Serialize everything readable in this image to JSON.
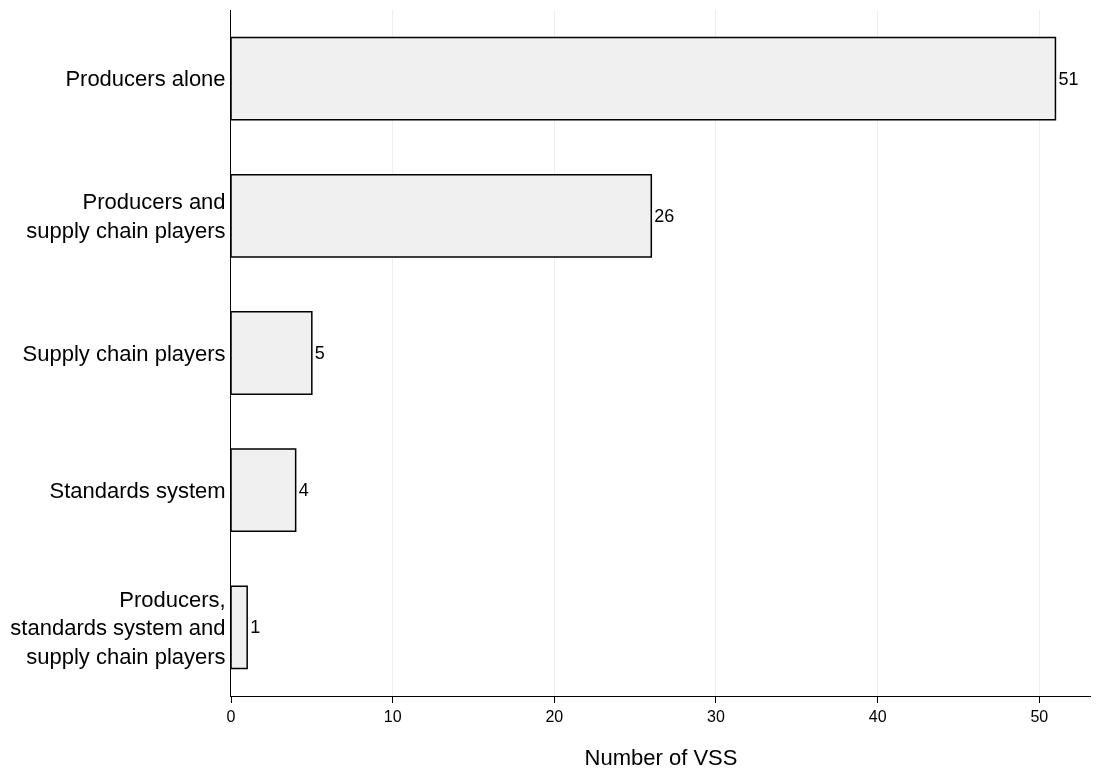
{
  "chart_data": {
    "type": "bar",
    "orientation": "horizontal",
    "xlabel": "Number of VSS",
    "categories": [
      "Producers alone",
      "Producers and\nsupply chain players",
      "Supply chain players",
      "Standards system",
      "Producers,\nstandards system and\nsupply chain players"
    ],
    "values": [
      51,
      26,
      5,
      4,
      1
    ],
    "color": "#f0f0f0",
    "xlim": [
      0,
      53.2
    ],
    "xticks": [
      0,
      10,
      20,
      30,
      40,
      50
    ],
    "grid": "x",
    "data_labels": true,
    "legend": false
  }
}
